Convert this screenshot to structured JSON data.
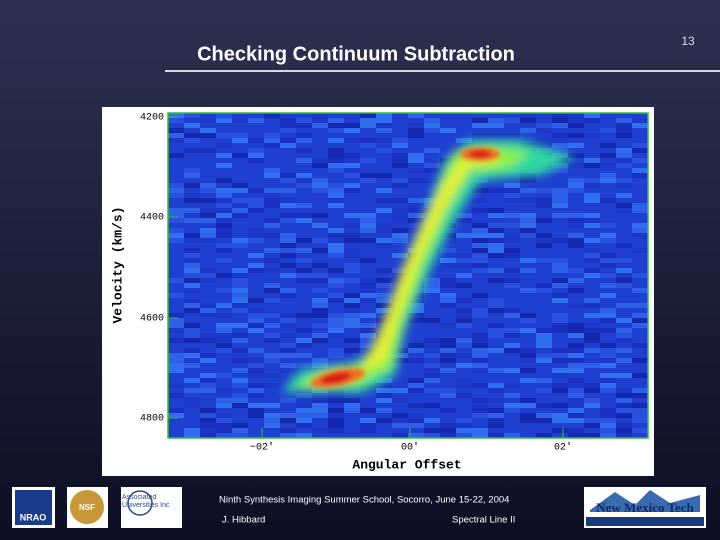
{
  "slide": {
    "title": "Checking Continuum Subtraction",
    "page_number": "13"
  },
  "figure": {
    "y_label": "Velocity (km/s)",
    "x_label": "Angular Offset",
    "y_ticks": [
      "4200",
      "4400",
      "4600",
      "4800"
    ],
    "x_ticks": [
      "−02'",
      "00'",
      "02'"
    ]
  },
  "footer": {
    "event": "Ninth Synthesis Imaging Summer School, Socorro, June 15-22, 2004",
    "author": "J. Hibbard",
    "lecture": "Spectral Line II"
  },
  "logos": [
    "NRAO",
    "NSF",
    "Associated Universities Inc",
    "New Mexico Tech"
  ]
}
